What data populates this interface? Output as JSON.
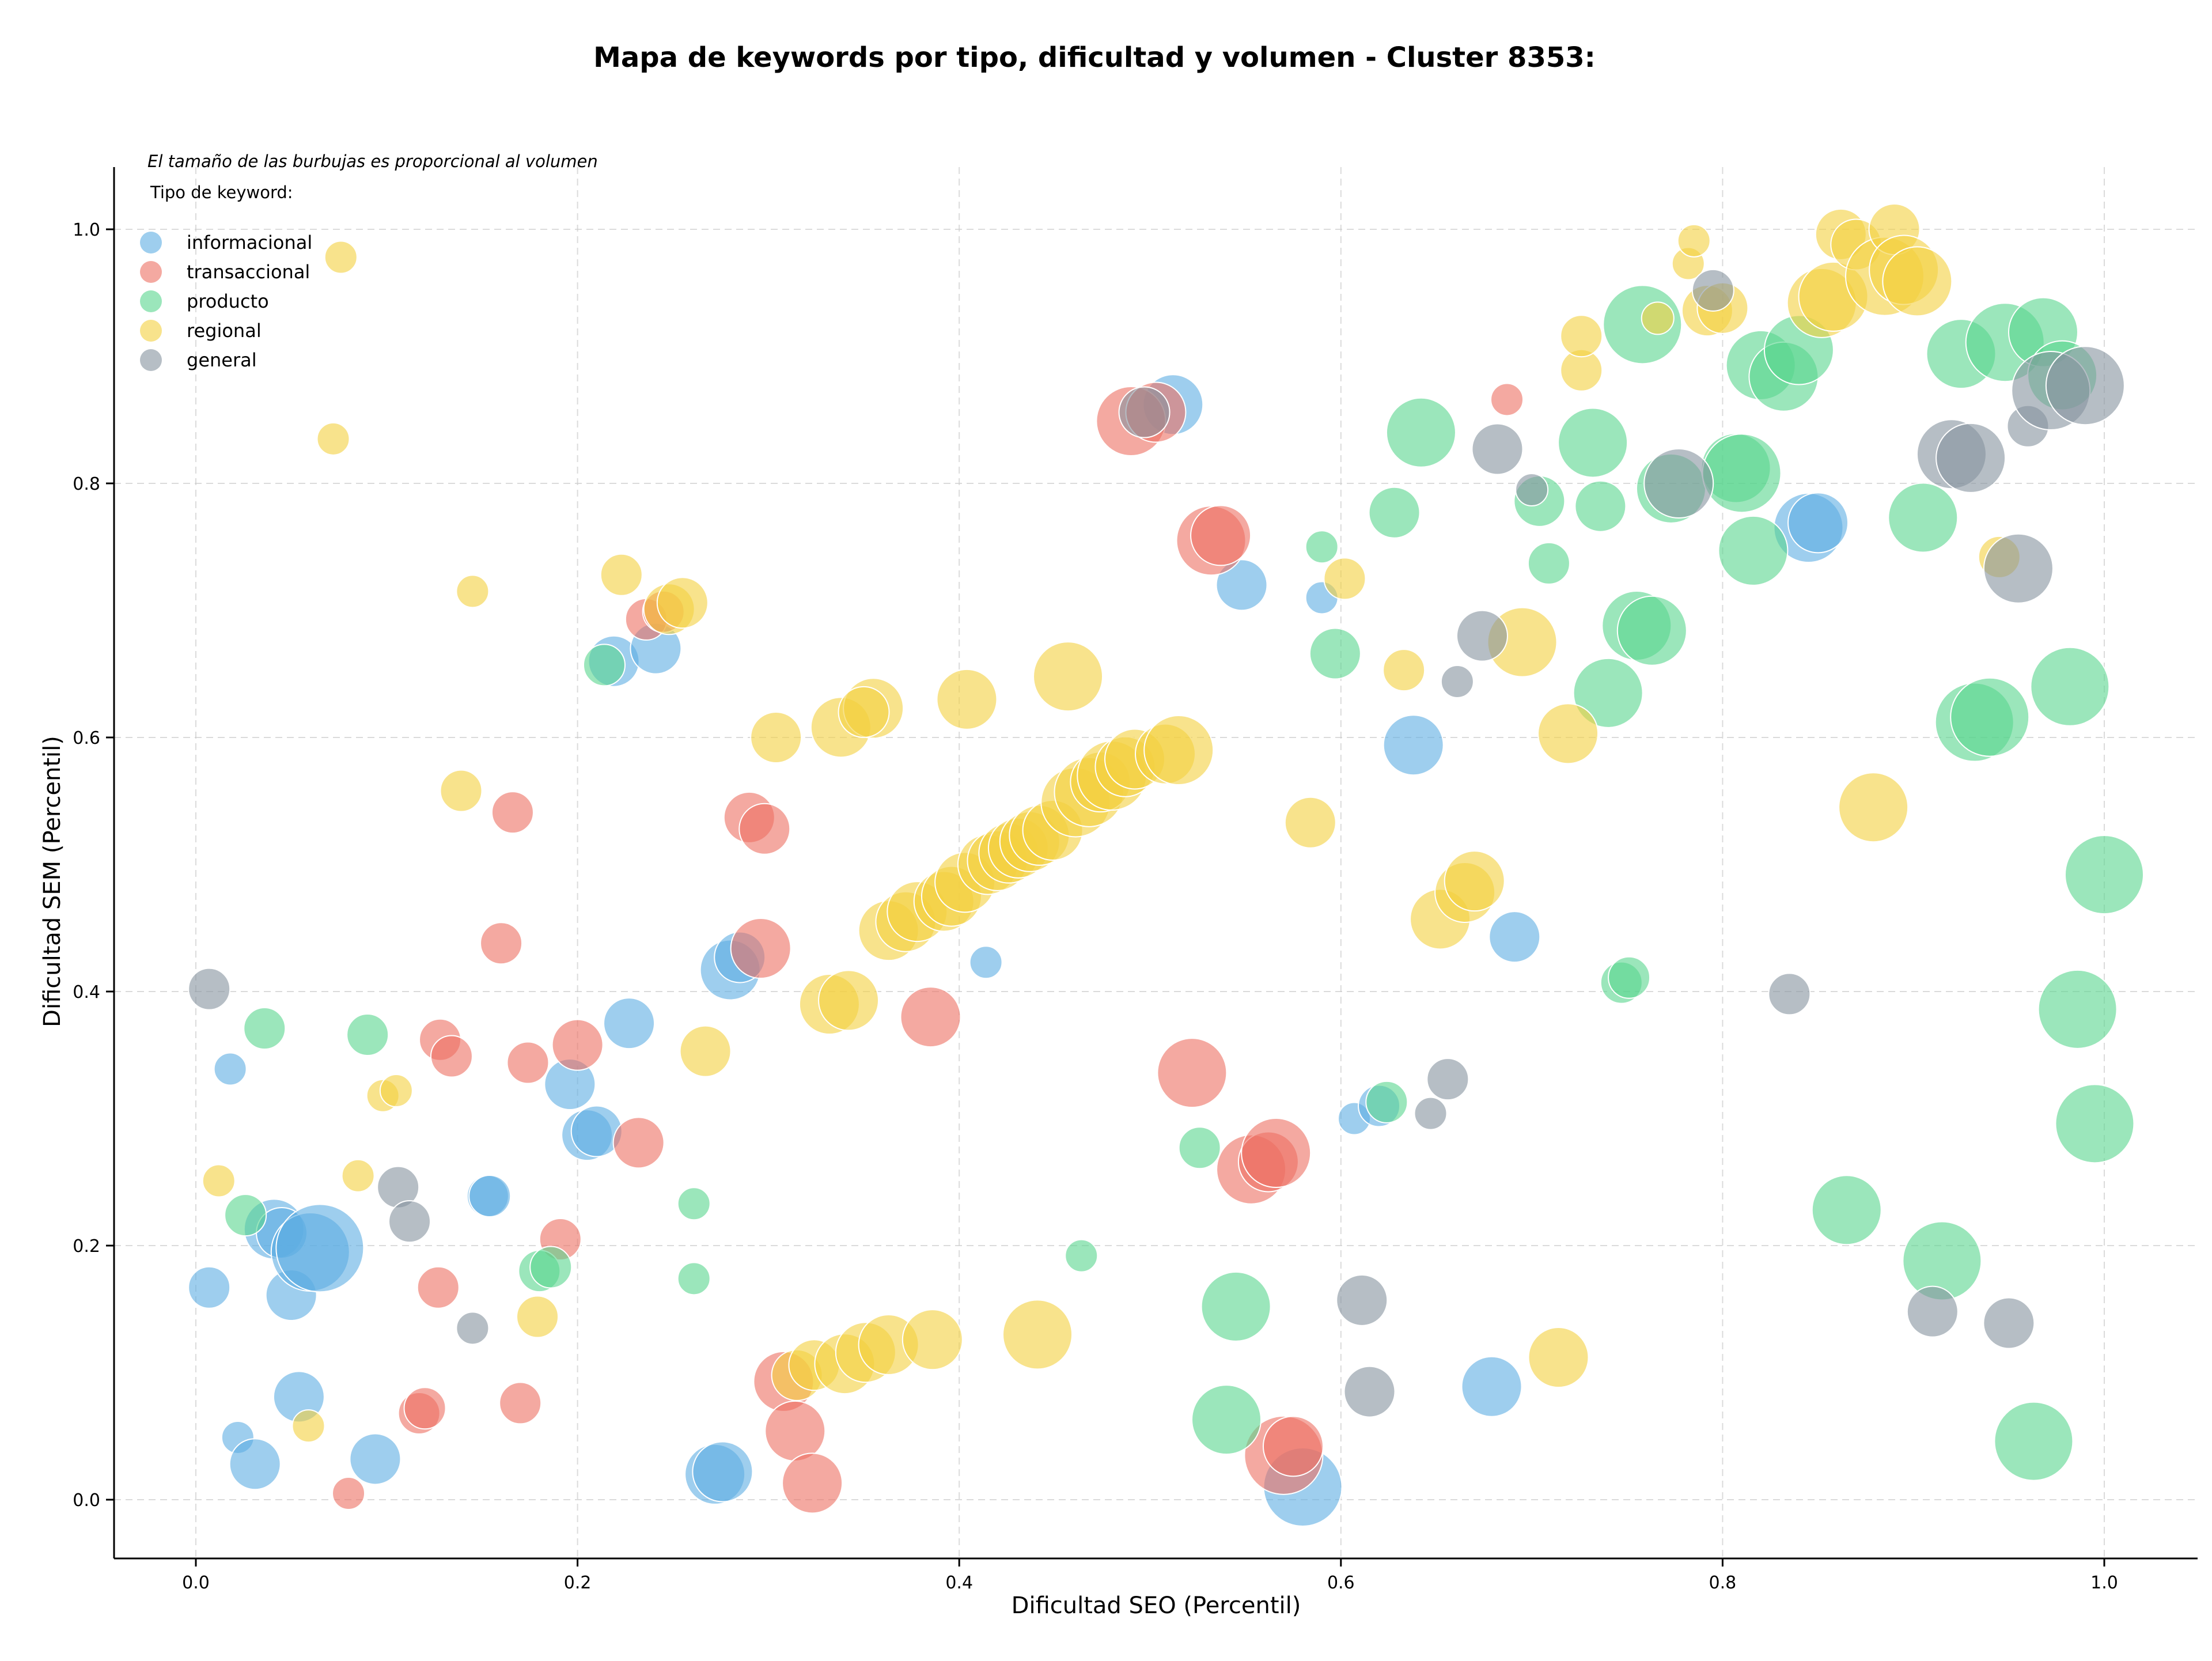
{
  "chart_data": {
    "type": "scatter",
    "title": "Mapa de keywords por tipo, dificultad y volumen - Cluster 8353:",
    "xlabel": "Dificultad SEO (Percentil)",
    "ylabel": "Dificultad SEM (Percentil)",
    "xlim": [
      -0.04,
      1.05
    ],
    "ylim": [
      -0.045,
      1.05
    ],
    "xticks": [
      0.0,
      0.2,
      0.4,
      0.6,
      0.8,
      1.0
    ],
    "xtick_labels": [
      "0.0",
      "0.2",
      "0.4",
      "0.6",
      "0.8",
      "1.0"
    ],
    "yticks": [
      0.0,
      0.2,
      0.4,
      0.6,
      0.8,
      1.0
    ],
    "ytick_labels": [
      "0.0",
      "0.2",
      "0.4",
      "0.6",
      "0.8",
      "1.0"
    ],
    "grid": true,
    "size_note": "El tamaño de las burbujas es proporcional al volumen",
    "legend_title": "Tipo de keyword:",
    "legend_position": "top-left",
    "series": [
      {
        "name": "informacional",
        "color": "#5DADE2",
        "points": [
          [
            0.007,
            0.167,
            3
          ],
          [
            0.018,
            0.339,
            2
          ],
          [
            0.022,
            0.049,
            2
          ],
          [
            0.031,
            0.028,
            4
          ],
          [
            0.041,
            0.213,
            5
          ],
          [
            0.045,
            0.21,
            4
          ],
          [
            0.05,
            0.161,
            4
          ],
          [
            0.054,
            0.081,
            4
          ],
          [
            0.06,
            0.195,
            7
          ],
          [
            0.065,
            0.198,
            8
          ],
          [
            0.094,
            0.032,
            4
          ],
          [
            0.196,
            0.327,
            4
          ],
          [
            0.205,
            0.287,
            4
          ],
          [
            0.21,
            0.29,
            4
          ],
          [
            0.153,
            0.239,
            3
          ],
          [
            0.154,
            0.239,
            3
          ],
          [
            0.227,
            0.375,
            4
          ],
          [
            0.219,
            0.66,
            4
          ],
          [
            0.241,
            0.67,
            4
          ],
          [
            0.272,
            0.02,
            5
          ],
          [
            0.276,
            0.022,
            5
          ],
          [
            0.28,
            0.417,
            5
          ],
          [
            0.285,
            0.427,
            4
          ],
          [
            0.414,
            0.423,
            2
          ],
          [
            0.512,
            0.862,
            5
          ],
          [
            0.548,
            0.72,
            4
          ],
          [
            0.58,
            0.01,
            7
          ],
          [
            0.59,
            0.71,
            2
          ],
          [
            0.607,
            0.3,
            2
          ],
          [
            0.62,
            0.31,
            3
          ],
          [
            0.638,
            0.594,
            5
          ],
          [
            0.679,
            0.089,
            5
          ],
          [
            0.691,
            0.443,
            4
          ],
          [
            0.845,
            0.765,
            6
          ],
          [
            0.85,
            0.769,
            5
          ]
        ]
      },
      {
        "name": "transaccional",
        "color": "#EC7063",
        "points": [
          [
            0.08,
            0.005,
            2
          ],
          [
            0.117,
            0.068,
            3
          ],
          [
            0.12,
            0.072,
            3
          ],
          [
            0.128,
            0.362,
            3
          ],
          [
            0.134,
            0.349,
            3
          ],
          [
            0.127,
            0.167,
            3
          ],
          [
            0.16,
            0.438,
            3
          ],
          [
            0.166,
            0.541,
            3
          ],
          [
            0.17,
            0.076,
            3
          ],
          [
            0.174,
            0.344,
            3
          ],
          [
            0.191,
            0.205,
            3
          ],
          [
            0.2,
            0.358,
            4
          ],
          [
            0.232,
            0.281,
            4
          ],
          [
            0.236,
            0.693,
            3
          ],
          [
            0.245,
            0.699,
            3
          ],
          [
            0.29,
            0.537,
            4
          ],
          [
            0.298,
            0.528,
            4
          ],
          [
            0.296,
            0.434,
            5
          ],
          [
            0.308,
            0.093,
            5
          ],
          [
            0.314,
            0.054,
            5
          ],
          [
            0.323,
            0.013,
            5
          ],
          [
            0.385,
            0.38,
            5
          ],
          [
            0.49,
            0.849,
            6
          ],
          [
            0.503,
            0.856,
            5
          ],
          [
            0.522,
            0.336,
            6
          ],
          [
            0.532,
            0.755,
            6
          ],
          [
            0.537,
            0.759,
            5
          ],
          [
            0.553,
            0.26,
            6
          ],
          [
            0.562,
            0.266,
            5
          ],
          [
            0.566,
            0.273,
            6
          ],
          [
            0.57,
            0.035,
            7
          ],
          [
            0.575,
            0.042,
            5
          ],
          [
            0.687,
            0.866,
            2
          ]
        ]
      },
      {
        "name": "producto",
        "color": "#58D68D",
        "points": [
          [
            0.026,
            0.224,
            3
          ],
          [
            0.036,
            0.371,
            3
          ],
          [
            0.09,
            0.366,
            3
          ],
          [
            0.18,
            0.18,
            3
          ],
          [
            0.186,
            0.183,
            3
          ],
          [
            0.214,
            0.657,
            3
          ],
          [
            0.261,
            0.233,
            2
          ],
          [
            0.261,
            0.174,
            2
          ],
          [
            0.464,
            0.192,
            2
          ],
          [
            0.526,
            0.277,
            3
          ],
          [
            0.54,
            0.063,
            6
          ],
          [
            0.545,
            0.152,
            6
          ],
          [
            0.59,
            0.75,
            2
          ],
          [
            0.597,
            0.666,
            4
          ],
          [
            0.624,
            0.313,
            3
          ],
          [
            0.628,
            0.777,
            4
          ],
          [
            0.642,
            0.84,
            6
          ],
          [
            0.704,
            0.786,
            4
          ],
          [
            0.709,
            0.737,
            3
          ],
          [
            0.732,
            0.832,
            6
          ],
          [
            0.736,
            0.782,
            4
          ],
          [
            0.74,
            0.635,
            6
          ],
          [
            0.747,
            0.407,
            3
          ],
          [
            0.751,
            0.411,
            3
          ],
          [
            0.755,
            0.688,
            6
          ],
          [
            0.758,
            0.925,
            7
          ],
          [
            0.763,
            0.684,
            6
          ],
          [
            0.773,
            0.796,
            6
          ],
          [
            0.807,
            0.812,
            6
          ],
          [
            0.81,
            0.808,
            7
          ],
          [
            0.816,
            0.747,
            6
          ],
          [
            0.82,
            0.893,
            6
          ],
          [
            0.832,
            0.884,
            6
          ],
          [
            0.84,
            0.905,
            6
          ],
          [
            0.865,
            0.228,
            6
          ],
          [
            0.905,
            0.773,
            6
          ],
          [
            0.915,
            0.188,
            7
          ],
          [
            0.925,
            0.902,
            6
          ],
          [
            0.932,
            0.612,
            7
          ],
          [
            0.94,
            0.616,
            7
          ],
          [
            0.948,
            0.911,
            7
          ],
          [
            0.963,
            0.046,
            7
          ],
          [
            0.968,
            0.919,
            6
          ],
          [
            0.978,
            0.885,
            6
          ],
          [
            0.982,
            0.64,
            7
          ],
          [
            0.986,
            0.386,
            7
          ],
          [
            0.995,
            0.296,
            7
          ],
          [
            1.0,
            0.492,
            7
          ]
        ]
      },
      {
        "name": "regional",
        "color": "#F4D03F",
        "points": [
          [
            0.012,
            0.251,
            2
          ],
          [
            0.059,
            0.058,
            2
          ],
          [
            0.072,
            0.835,
            2
          ],
          [
            0.076,
            0.978,
            2
          ],
          [
            0.085,
            0.255,
            2
          ],
          [
            0.098,
            0.318,
            2
          ],
          [
            0.105,
            0.322,
            2
          ],
          [
            0.145,
            0.715,
            2
          ],
          [
            0.139,
            0.558,
            3
          ],
          [
            0.179,
            0.144,
            3
          ],
          [
            0.223,
            0.728,
            3
          ],
          [
            0.248,
            0.701,
            4
          ],
          [
            0.255,
            0.706,
            4
          ],
          [
            0.267,
            0.353,
            4
          ],
          [
            0.304,
            0.6,
            4
          ],
          [
            0.315,
            0.098,
            4
          ],
          [
            0.324,
            0.106,
            4
          ],
          [
            0.332,
            0.39,
            5
          ],
          [
            0.338,
            0.608,
            5
          ],
          [
            0.342,
            0.393,
            5
          ],
          [
            0.34,
            0.107,
            5
          ],
          [
            0.351,
            0.116,
            5
          ],
          [
            0.355,
            0.623,
            5
          ],
          [
            0.35,
            0.62,
            4
          ],
          [
            0.363,
            0.122,
            5
          ],
          [
            0.363,
            0.448,
            5
          ],
          [
            0.372,
            0.455,
            5
          ],
          [
            0.378,
            0.463,
            5
          ],
          [
            0.386,
            0.126,
            5
          ],
          [
            0.392,
            0.471,
            5
          ],
          [
            0.396,
            0.475,
            5
          ],
          [
            0.403,
            0.486,
            5
          ],
          [
            0.404,
            0.63,
            5
          ],
          [
            0.415,
            0.5,
            5
          ],
          [
            0.42,
            0.503,
            5
          ],
          [
            0.426,
            0.509,
            5
          ],
          [
            0.431,
            0.513,
            5
          ],
          [
            0.437,
            0.518,
            5
          ],
          [
            0.442,
            0.523,
            5
          ],
          [
            0.441,
            0.13,
            6
          ],
          [
            0.449,
            0.527,
            5
          ],
          [
            0.457,
            0.648,
            6
          ],
          [
            0.461,
            0.549,
            6
          ],
          [
            0.468,
            0.557,
            6
          ],
          [
            0.474,
            0.565,
            5
          ],
          [
            0.48,
            0.57,
            6
          ],
          [
            0.487,
            0.577,
            5
          ],
          [
            0.492,
            0.583,
            5
          ],
          [
            0.508,
            0.587,
            5
          ],
          [
            0.515,
            0.59,
            6
          ],
          [
            0.584,
            0.533,
            4
          ],
          [
            0.602,
            0.725,
            3
          ],
          [
            0.633,
            0.653,
            3
          ],
          [
            0.652,
            0.457,
            5
          ],
          [
            0.665,
            0.478,
            5
          ],
          [
            0.67,
            0.487,
            5
          ],
          [
            0.695,
            0.675,
            6
          ],
          [
            0.714,
            0.112,
            5
          ],
          [
            0.719,
            0.603,
            5
          ],
          [
            0.726,
            0.889,
            3
          ],
          [
            0.726,
            0.916,
            3
          ],
          [
            0.766,
            0.93,
            2
          ],
          [
            0.782,
            0.973,
            2
          ],
          [
            0.785,
            0.991,
            2
          ],
          [
            0.792,
            0.936,
            4
          ],
          [
            0.8,
            0.938,
            4
          ],
          [
            0.852,
            0.942,
            6
          ],
          [
            0.858,
            0.947,
            6
          ],
          [
            0.862,
            0.996,
            4
          ],
          [
            0.87,
            0.988,
            4
          ],
          [
            0.879,
            0.545,
            6
          ],
          [
            0.885,
            0.963,
            7
          ],
          [
            0.89,
            1.0,
            4
          ],
          [
            0.895,
            0.968,
            6
          ],
          [
            0.902,
            0.959,
            6
          ],
          [
            0.945,
            0.742,
            3
          ]
        ]
      },
      {
        "name": "general",
        "color": "#85929E",
        "points": [
          [
            0.007,
            0.402,
            3
          ],
          [
            0.106,
            0.246,
            3
          ],
          [
            0.112,
            0.219,
            3
          ],
          [
            0.145,
            0.135,
            2
          ],
          [
            0.497,
            0.856,
            4
          ],
          [
            0.611,
            0.157,
            4
          ],
          [
            0.615,
            0.085,
            4
          ],
          [
            0.647,
            0.304,
            2
          ],
          [
            0.656,
            0.331,
            3
          ],
          [
            0.661,
            0.644,
            2
          ],
          [
            0.674,
            0.68,
            4
          ],
          [
            0.682,
            0.827,
            4
          ],
          [
            0.7,
            0.795,
            2
          ],
          [
            0.777,
            0.8,
            6
          ],
          [
            0.795,
            0.952,
            3
          ],
          [
            0.835,
            0.398,
            3
          ],
          [
            0.91,
            0.148,
            4
          ],
          [
            0.92,
            0.823,
            6
          ],
          [
            0.93,
            0.82,
            6
          ],
          [
            0.95,
            0.139,
            4
          ],
          [
            0.955,
            0.733,
            6
          ],
          [
            0.96,
            0.845,
            3
          ],
          [
            0.972,
            0.873,
            7
          ],
          [
            0.99,
            0.877,
            7
          ]
        ]
      }
    ]
  }
}
